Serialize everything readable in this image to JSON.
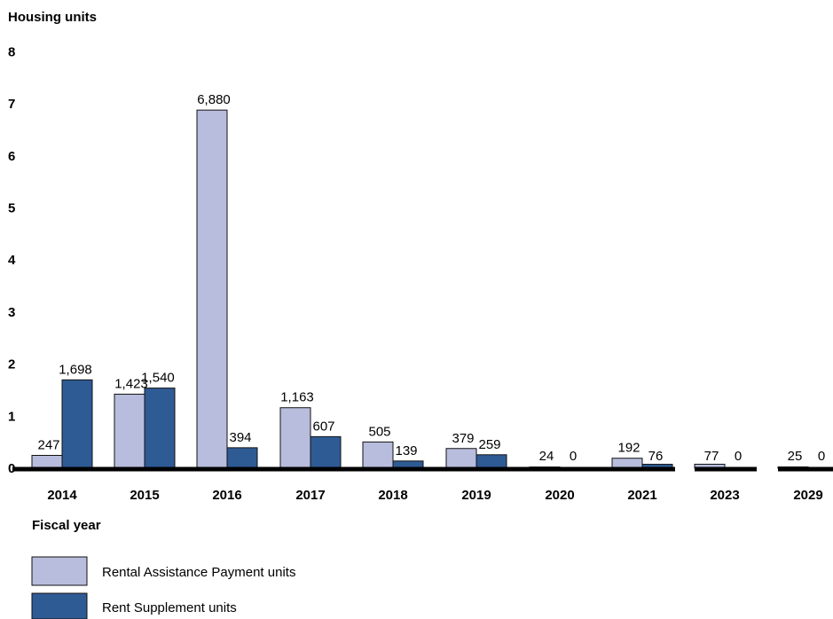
{
  "chart_data": {
    "type": "bar",
    "ylabel": "Housing units",
    "xlabel": "Fiscal year",
    "y_ticks": [
      "0",
      "1",
      "2",
      "3",
      "4",
      "5",
      "6",
      "7",
      "8"
    ],
    "ylim": [
      0,
      8000
    ],
    "categories": [
      "2014",
      "2015",
      "2016",
      "2017",
      "2018",
      "2019",
      "2020",
      "2021",
      "2023",
      "2029"
    ],
    "series": [
      {
        "name": "Rental Assistance Payment units",
        "color": "#b8bddd",
        "values": [
          247,
          1423,
          6880,
          1163,
          505,
          379,
          24,
          192,
          77,
          25
        ],
        "labels": [
          "247",
          "1,423",
          "6,880",
          "1,163",
          "505",
          "379",
          "24",
          "192",
          "77",
          "25"
        ]
      },
      {
        "name": "Rent Supplement units",
        "color": "#2f5b95",
        "values": [
          1698,
          1540,
          394,
          607,
          139,
          259,
          0,
          76,
          0,
          0
        ],
        "labels": [
          "1,698",
          "1,540",
          "394",
          "607",
          "139",
          "259",
          "0",
          "76",
          "0",
          "0"
        ]
      }
    ],
    "grid": false,
    "legend_position": "bottom-left"
  }
}
